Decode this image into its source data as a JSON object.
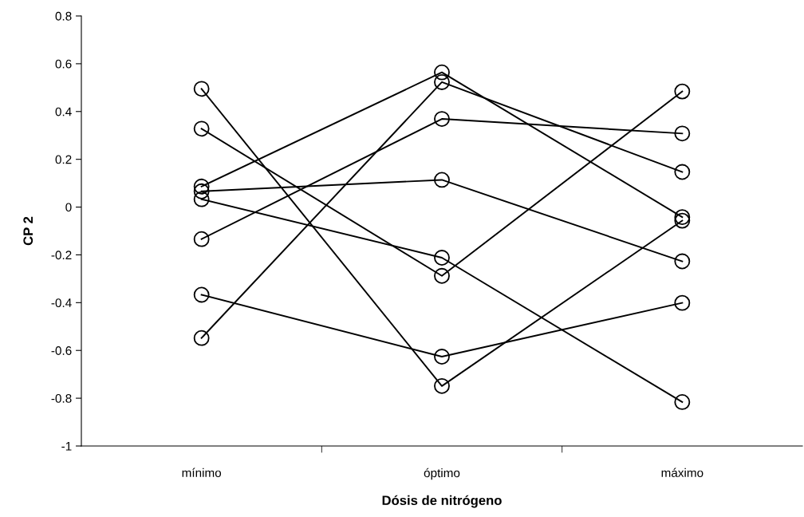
{
  "chart_data": {
    "type": "line",
    "xlabel": "Dósis de nitrógeno",
    "ylabel": "CP 2",
    "categories": [
      "mínimo",
      "óptimo",
      "máximo"
    ],
    "series": [
      {
        "color": "#000000",
        "values": [
          0.495,
          -0.749,
          -0.057
        ]
      },
      {
        "color": "#000000",
        "values": [
          0.328,
          -0.288,
          0.484
        ]
      },
      {
        "color": "#000000",
        "values": [
          0.086,
          0.564,
          -0.042
        ]
      },
      {
        "color": "#000000",
        "values": [
          0.066,
          0.114,
          -0.227
        ]
      },
      {
        "color": "#000000",
        "values": [
          0.033,
          -0.212,
          -0.816
        ]
      },
      {
        "color": "#000000",
        "values": [
          -0.134,
          0.369,
          0.308
        ]
      },
      {
        "color": "#000000",
        "values": [
          -0.367,
          -0.626,
          -0.401
        ]
      },
      {
        "color": "#000000",
        "values": [
          -0.548,
          0.523,
          0.147
        ]
      }
    ],
    "ylim": [
      -1,
      0.8
    ],
    "yticks": [
      -1,
      -0.8,
      -0.6,
      -0.4,
      -0.2,
      0,
      0.2,
      0.4,
      0.6,
      0.8
    ],
    "grid": false,
    "marker": "circle",
    "line_style": "solid"
  }
}
